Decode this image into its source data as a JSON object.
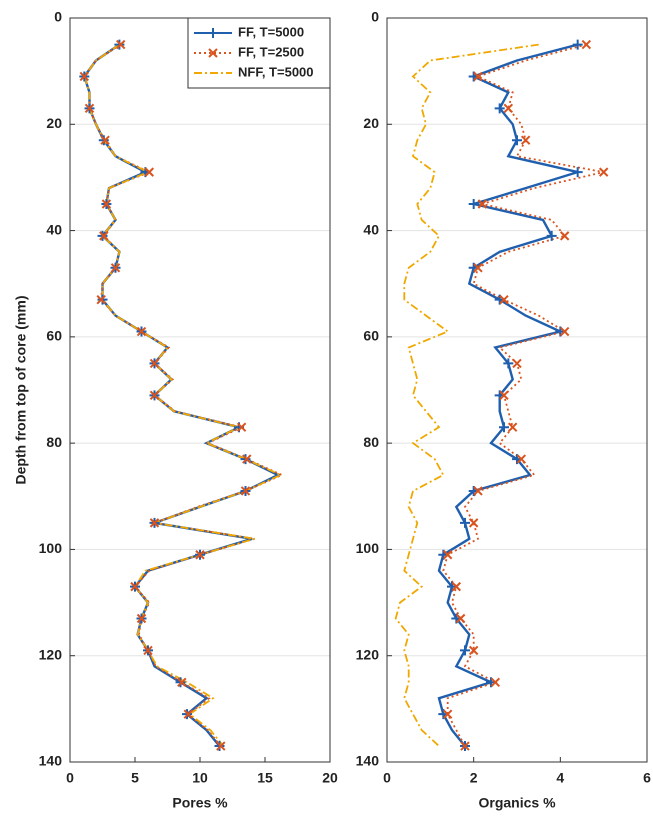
{
  "chart_data": [
    {
      "type": "line",
      "orientation": "vertical",
      "xlabel": "Pores %",
      "ylabel": "Depth from top of core (mm)",
      "xlim": [
        0,
        20
      ],
      "xticks": [
        0,
        5,
        10,
        15,
        20
      ],
      "ylim": [
        0,
        140
      ],
      "yticks": [
        0,
        20,
        40,
        60,
        80,
        100,
        120,
        140
      ],
      "y_reversed": true,
      "grid": true,
      "legend": "upper right",
      "y": [
        5,
        8,
        11,
        14,
        17,
        20,
        23,
        26,
        29,
        32,
        35,
        38,
        41,
        44,
        47,
        50,
        53,
        56,
        59,
        62,
        65,
        68,
        71,
        74,
        77,
        80,
        83,
        86,
        89,
        92,
        95,
        98,
        101,
        104,
        107,
        110,
        113,
        116,
        119,
        122,
        125,
        128,
        131,
        134,
        137
      ],
      "series": [
        {
          "name": "FF, T=5000",
          "color": "#1f5fad",
          "style": "solid",
          "marker": "+",
          "markevery": 2,
          "values": [
            3.8,
            2,
            1.1,
            1.5,
            1.5,
            2,
            2.6,
            3.5,
            5.8,
            3,
            2.8,
            3.5,
            2.5,
            3.8,
            3.5,
            2.5,
            2.5,
            3.5,
            5.5,
            7.5,
            6.5,
            7.8,
            6.5,
            8,
            13,
            10.5,
            13.5,
            16,
            13.5,
            10,
            6.5,
            14,
            10,
            6,
            5,
            6,
            5.5,
            5.2,
            6,
            6.5,
            8.5,
            10.5,
            9,
            10.5,
            11.5
          ]
        },
        {
          "name": "FF, T=2500",
          "color": "#d9531e",
          "style": "dotted",
          "marker": "x",
          "markevery": 2,
          "values": [
            3.9,
            2,
            1.1,
            1.5,
            1.5,
            2,
            2.7,
            3.5,
            6.1,
            3,
            2.8,
            3.5,
            2.6,
            3.8,
            3.5,
            2.5,
            2.4,
            3.5,
            5.5,
            7.6,
            6.5,
            7.9,
            6.5,
            8.1,
            13.2,
            10.6,
            13.6,
            16.3,
            13.5,
            9.8,
            6.5,
            14.2,
            10,
            6.1,
            5,
            6.1,
            5.5,
            5.3,
            6,
            6.6,
            8.6,
            10.7,
            9.1,
            10.6,
            11.6
          ]
        },
        {
          "name": "NFF, T=5000",
          "color": "#f0a800",
          "style": "dashdot",
          "values": [
            3.8,
            2,
            1.1,
            1.5,
            1.5,
            2,
            2.6,
            3.5,
            6,
            3,
            2.8,
            3.5,
            2.5,
            3.8,
            3.5,
            2.5,
            2.5,
            3.5,
            5.5,
            7.5,
            6.5,
            7.8,
            6.5,
            8,
            13,
            10.5,
            13.5,
            16.2,
            13.5,
            10,
            6.5,
            14.2,
            10,
            5.8,
            5,
            6,
            5.5,
            5.2,
            6,
            6.7,
            9,
            11,
            9.2,
            10.8,
            11.8
          ]
        }
      ]
    },
    {
      "type": "line",
      "orientation": "vertical",
      "xlabel": "Organics %",
      "xlim": [
        0,
        6
      ],
      "xticks": [
        0,
        2,
        4,
        6
      ],
      "ylim": [
        0,
        140
      ],
      "yticks": [
        0,
        20,
        40,
        60,
        80,
        100,
        120,
        140
      ],
      "y_reversed": true,
      "grid": true,
      "y": [
        5,
        8,
        11,
        14,
        17,
        20,
        23,
        26,
        29,
        32,
        35,
        38,
        41,
        44,
        47,
        50,
        53,
        56,
        59,
        62,
        65,
        68,
        71,
        74,
        77,
        80,
        83,
        86,
        89,
        92,
        95,
        98,
        101,
        104,
        107,
        110,
        113,
        116,
        119,
        122,
        125,
        128,
        131,
        134,
        137
      ],
      "series": [
        {
          "color": "#1f5fad",
          "style": "solid",
          "marker": "+",
          "markevery": 2,
          "values": [
            4.4,
            3,
            2,
            2.8,
            2.6,
            2.9,
            3,
            2.8,
            4.4,
            3.2,
            2,
            3.6,
            3.8,
            2.6,
            2,
            1.9,
            2.6,
            3.2,
            4,
            2.5,
            2.8,
            2.9,
            2.6,
            2.6,
            2.7,
            2.4,
            3,
            3.3,
            2,
            1.6,
            1.8,
            1.9,
            1.3,
            1.2,
            1.5,
            1.4,
            1.6,
            1.9,
            1.8,
            1.6,
            2.4,
            1.2,
            1.3,
            1.5,
            1.8
          ]
        },
        {
          "color": "#d9531e",
          "style": "dotted",
          "marker": "x",
          "markevery": 2,
          "values": [
            4.6,
            3.2,
            2.1,
            2.9,
            2.8,
            3.1,
            3.2,
            3,
            5,
            3.4,
            2.2,
            3.8,
            4.1,
            2.8,
            2.1,
            2,
            2.7,
            3.5,
            4.1,
            2.6,
            3,
            3.1,
            2.7,
            2.8,
            2.9,
            2.6,
            3.1,
            3.4,
            2.1,
            1.8,
            2,
            2.1,
            1.4,
            1.3,
            1.6,
            1.5,
            1.7,
            2,
            2,
            1.8,
            2.5,
            1.4,
            1.4,
            1.6,
            1.8
          ]
        },
        {
          "color": "#f0a800",
          "style": "dashdot",
          "values": [
            3.5,
            1,
            0.6,
            1,
            0.8,
            0.9,
            0.7,
            0.6,
            1.1,
            1,
            0.7,
            0.8,
            1.2,
            1,
            0.5,
            0.4,
            0.4,
            0.9,
            1.4,
            0.5,
            0.6,
            0.7,
            0.6,
            0.9,
            1.2,
            0.6,
            1.1,
            1.3,
            0.6,
            0.5,
            0.7,
            0.6,
            0.5,
            0.4,
            0.8,
            0.3,
            0.2,
            0.5,
            0.4,
            0.5,
            0.5,
            0.4,
            0.6,
            0.8,
            1.2
          ]
        }
      ]
    }
  ]
}
